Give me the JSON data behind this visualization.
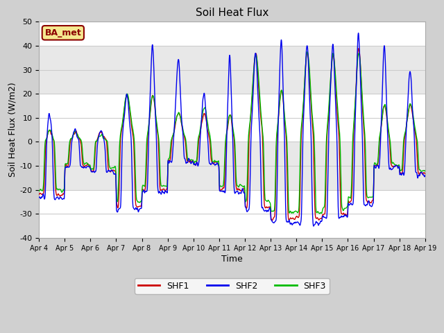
{
  "title": "Soil Heat Flux",
  "xlabel": "Time",
  "ylabel": "Soil Heat Flux (W/m2)",
  "ylim": [
    -40,
    50
  ],
  "yticks": [
    -40,
    -30,
    -20,
    -10,
    0,
    10,
    20,
    30,
    40,
    50
  ],
  "site_label": "BA_met",
  "colors": {
    "SHF1": "#cc0000",
    "SHF2": "#0000ee",
    "SHF3": "#00bb00"
  },
  "legend_labels": [
    "SHF1",
    "SHF2",
    "SHF3"
  ],
  "fig_bg": "#d0d0d0",
  "plot_bg": "#e8e8e8",
  "white_band_color": "#ffffff",
  "n_days": 15,
  "start_day": 4,
  "pts_per_day": 144
}
